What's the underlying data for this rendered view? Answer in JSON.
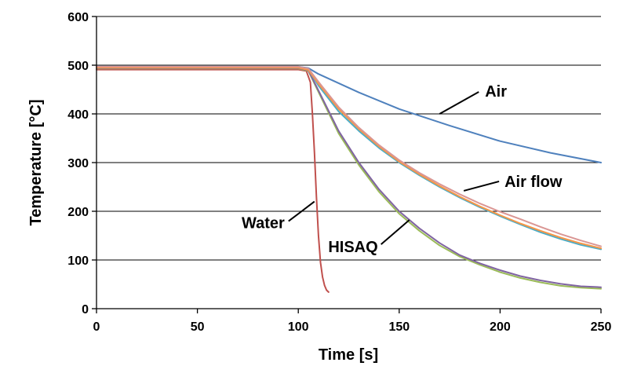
{
  "chart_data": {
    "type": "line",
    "title": "",
    "xlabel": "Time [s]",
    "ylabel": "Temperature [°C]",
    "xlim": [
      0,
      250
    ],
    "ylim": [
      0,
      600
    ],
    "xticks": [
      0,
      50,
      100,
      150,
      200,
      250
    ],
    "yticks": [
      0,
      100,
      200,
      300,
      400,
      500,
      600
    ],
    "grid": "horizontal",
    "legend": "none",
    "annotations": [
      {
        "text": "Air",
        "at": [
          170,
          400
        ]
      },
      {
        "text": "Air flow",
        "at": [
          182,
          242
        ]
      },
      {
        "text": "Water",
        "at": [
          108,
          220
        ]
      },
      {
        "text": "HISAQ",
        "at": [
          155,
          182
        ]
      }
    ],
    "series": [
      {
        "color": "#4f81bd",
        "x": [
          0,
          100,
          105,
          110,
          130,
          150,
          175,
          200,
          225,
          250
        ],
        "y": [
          497,
          497,
          494,
          482,
          444,
          410,
          376,
          344,
          320,
          300
        ]
      },
      {
        "color": "#c0504d",
        "x": [
          0,
          100,
          104,
          106,
          107,
          108,
          109,
          110,
          111,
          112,
          113,
          114,
          115
        ],
        "y": [
          491,
          491,
          488,
          465,
          400,
          320,
          230,
          150,
          95,
          65,
          48,
          38,
          34
        ]
      },
      {
        "color": "#9bbb59",
        "x": [
          0,
          100,
          105,
          110,
          120,
          130,
          140,
          150,
          160,
          170,
          180,
          190,
          200,
          210,
          220,
          230,
          240,
          250
        ],
        "y": [
          493,
          493,
          488,
          445,
          360,
          295,
          240,
          195,
          160,
          130,
          107,
          90,
          75,
          63,
          54,
          47,
          43,
          41
        ]
      },
      {
        "color": "#8064a2",
        "x": [
          0,
          100,
          105,
          110,
          120,
          130,
          140,
          150,
          160,
          170,
          180,
          190,
          200,
          210,
          220,
          230,
          240,
          250
        ],
        "y": [
          494,
          494,
          489,
          448,
          365,
          300,
          245,
          200,
          165,
          135,
          110,
          93,
          79,
          67,
          58,
          51,
          46,
          44
        ]
      },
      {
        "color": "#4bacc6",
        "x": [
          0,
          100,
          105,
          110,
          120,
          130,
          140,
          150,
          160,
          170,
          180,
          190,
          200,
          210,
          220,
          230,
          240,
          250
        ],
        "y": [
          496,
          496,
          491,
          458,
          405,
          365,
          330,
          300,
          274,
          250,
          228,
          208,
          190,
          173,
          157,
          143,
          131,
          122
        ]
      },
      {
        "color": "#f79646",
        "x": [
          0,
          100,
          105,
          110,
          120,
          130,
          140,
          150,
          160,
          170,
          180,
          190,
          200,
          210,
          220,
          230,
          240,
          250
        ],
        "y": [
          495,
          495,
          490,
          462,
          410,
          369,
          333,
          302,
          276,
          252,
          230,
          210,
          192,
          175,
          160,
          146,
          134,
          124
        ]
      },
      {
        "color": "#da9694",
        "x": [
          0,
          100,
          105,
          110,
          120,
          130,
          140,
          150,
          160,
          170,
          180,
          190,
          200,
          210,
          220,
          230,
          240,
          250
        ],
        "y": [
          497,
          497,
          493,
          466,
          414,
          372,
          336,
          305,
          279,
          256,
          235,
          216,
          199,
          184,
          168,
          153,
          140,
          128
        ]
      }
    ]
  }
}
